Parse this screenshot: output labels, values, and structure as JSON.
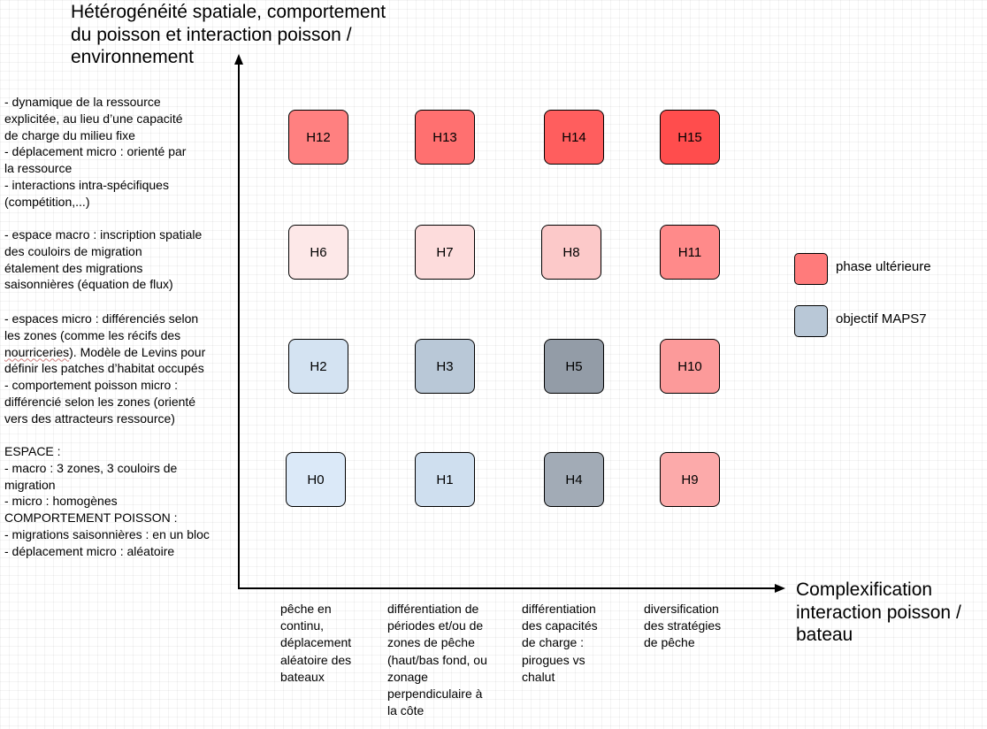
{
  "axes": {
    "y_title": "Hétérogénéité spatiale, comportement du poisson et interaction poisson / environnement",
    "x_title": "Complexification interaction poisson / bateau"
  },
  "rows": [
    {
      "description": "- dynamique de la ressource\nexplicitée, au lieu d’une capacité\nde charge du milieu fixe\n- déplacement micro : orienté par\nla ressource\n- interactions intra-spécifiques\n(compétition,...)"
    },
    {
      "description": "- espace macro : inscription spatiale\ndes couloirs de migration\nétalement des migrations\nsaisonnières (équation de flux)"
    },
    {
      "description_start": " - espaces micro : différenciés selon\nles zones (comme les récifs des\n",
      "description_flagged": "nourriceries",
      "description_end": "). Modèle de Levins pour\ndéfinir les patches d’habitat occupés\n- comportement poisson micro :\ndifférencié selon les zones (orienté\nvers des attracteurs ressource)"
    },
    {
      "description": "ESPACE :\n- macro : 3 zones, 3 couloirs de\nmigration\n- micro : homogènes\nCOMPORTEMENT POISSON :\n- migrations saisonnières : en un bloc\n- déplacement micro : aléatoire"
    }
  ],
  "columns": [
    {
      "description": "pêche en\ncontinu,\ndéplacement\naléatoire des\nbateaux"
    },
    {
      "description": "différentiation de\npériodes et/ou de\nzones de pêche\n(haut/bas fond, ou\nzonage\nperpendiculaire à\nla côte"
    },
    {
      "description": "différentiation\ndes capacités\nde charge :\npirogues vs\nchalut"
    },
    {
      "description": "diversification\ndes stratégies\nde pêche"
    }
  ],
  "hypotheses": [
    {
      "label": "H12",
      "row": 0,
      "col": 0,
      "color": "#ff8080",
      "category": "phase ultérieure"
    },
    {
      "label": "H13",
      "row": 0,
      "col": 1,
      "color": "#ff7070",
      "category": "phase ultérieure"
    },
    {
      "label": "H14",
      "row": 0,
      "col": 2,
      "color": "#ff5e5e",
      "category": "phase ultérieure"
    },
    {
      "label": "H15",
      "row": 0,
      "col": 3,
      "color": "#ff4d4d",
      "category": "phase ultérieure"
    },
    {
      "label": "H6",
      "row": 1,
      "col": 0,
      "color": "#fde8e8",
      "category": "phase ultérieure"
    },
    {
      "label": "H7",
      "row": 1,
      "col": 1,
      "color": "#fddcdc",
      "category": "phase ultérieure"
    },
    {
      "label": "H8",
      "row": 1,
      "col": 2,
      "color": "#fcc9c9",
      "category": "phase ultérieure"
    },
    {
      "label": "H11",
      "row": 1,
      "col": 3,
      "color": "#ff8a8a",
      "category": "phase ultérieure"
    },
    {
      "label": "H2",
      "row": 2,
      "col": 0,
      "color": "#d4e3f2",
      "category": "objectif MAPS7"
    },
    {
      "label": "H3",
      "row": 2,
      "col": 1,
      "color": "#b9c8d7",
      "category": "objectif MAPS7"
    },
    {
      "label": "H5",
      "row": 2,
      "col": 2,
      "color": "#939ca7",
      "category": "objectif MAPS7"
    },
    {
      "label": "H10",
      "row": 2,
      "col": 3,
      "color": "#fc9a9a",
      "category": "phase ultérieure"
    },
    {
      "label": "H0",
      "row": 3,
      "col": 0,
      "color": "#dbe9f8",
      "category": "objectif MAPS7"
    },
    {
      "label": "H1",
      "row": 3,
      "col": 1,
      "color": "#cfdfef",
      "category": "objectif MAPS7"
    },
    {
      "label": "H4",
      "row": 3,
      "col": 2,
      "color": "#a2abb6",
      "category": "objectif MAPS7"
    },
    {
      "label": "H9",
      "row": 3,
      "col": 3,
      "color": "#fcaaaa",
      "category": "phase ultérieure"
    }
  ],
  "legend": [
    {
      "label": "phase ultérieure",
      "color": "#ff7b7b"
    },
    {
      "label": "objectif MAPS7",
      "color": "#b9c8d7"
    }
  ]
}
